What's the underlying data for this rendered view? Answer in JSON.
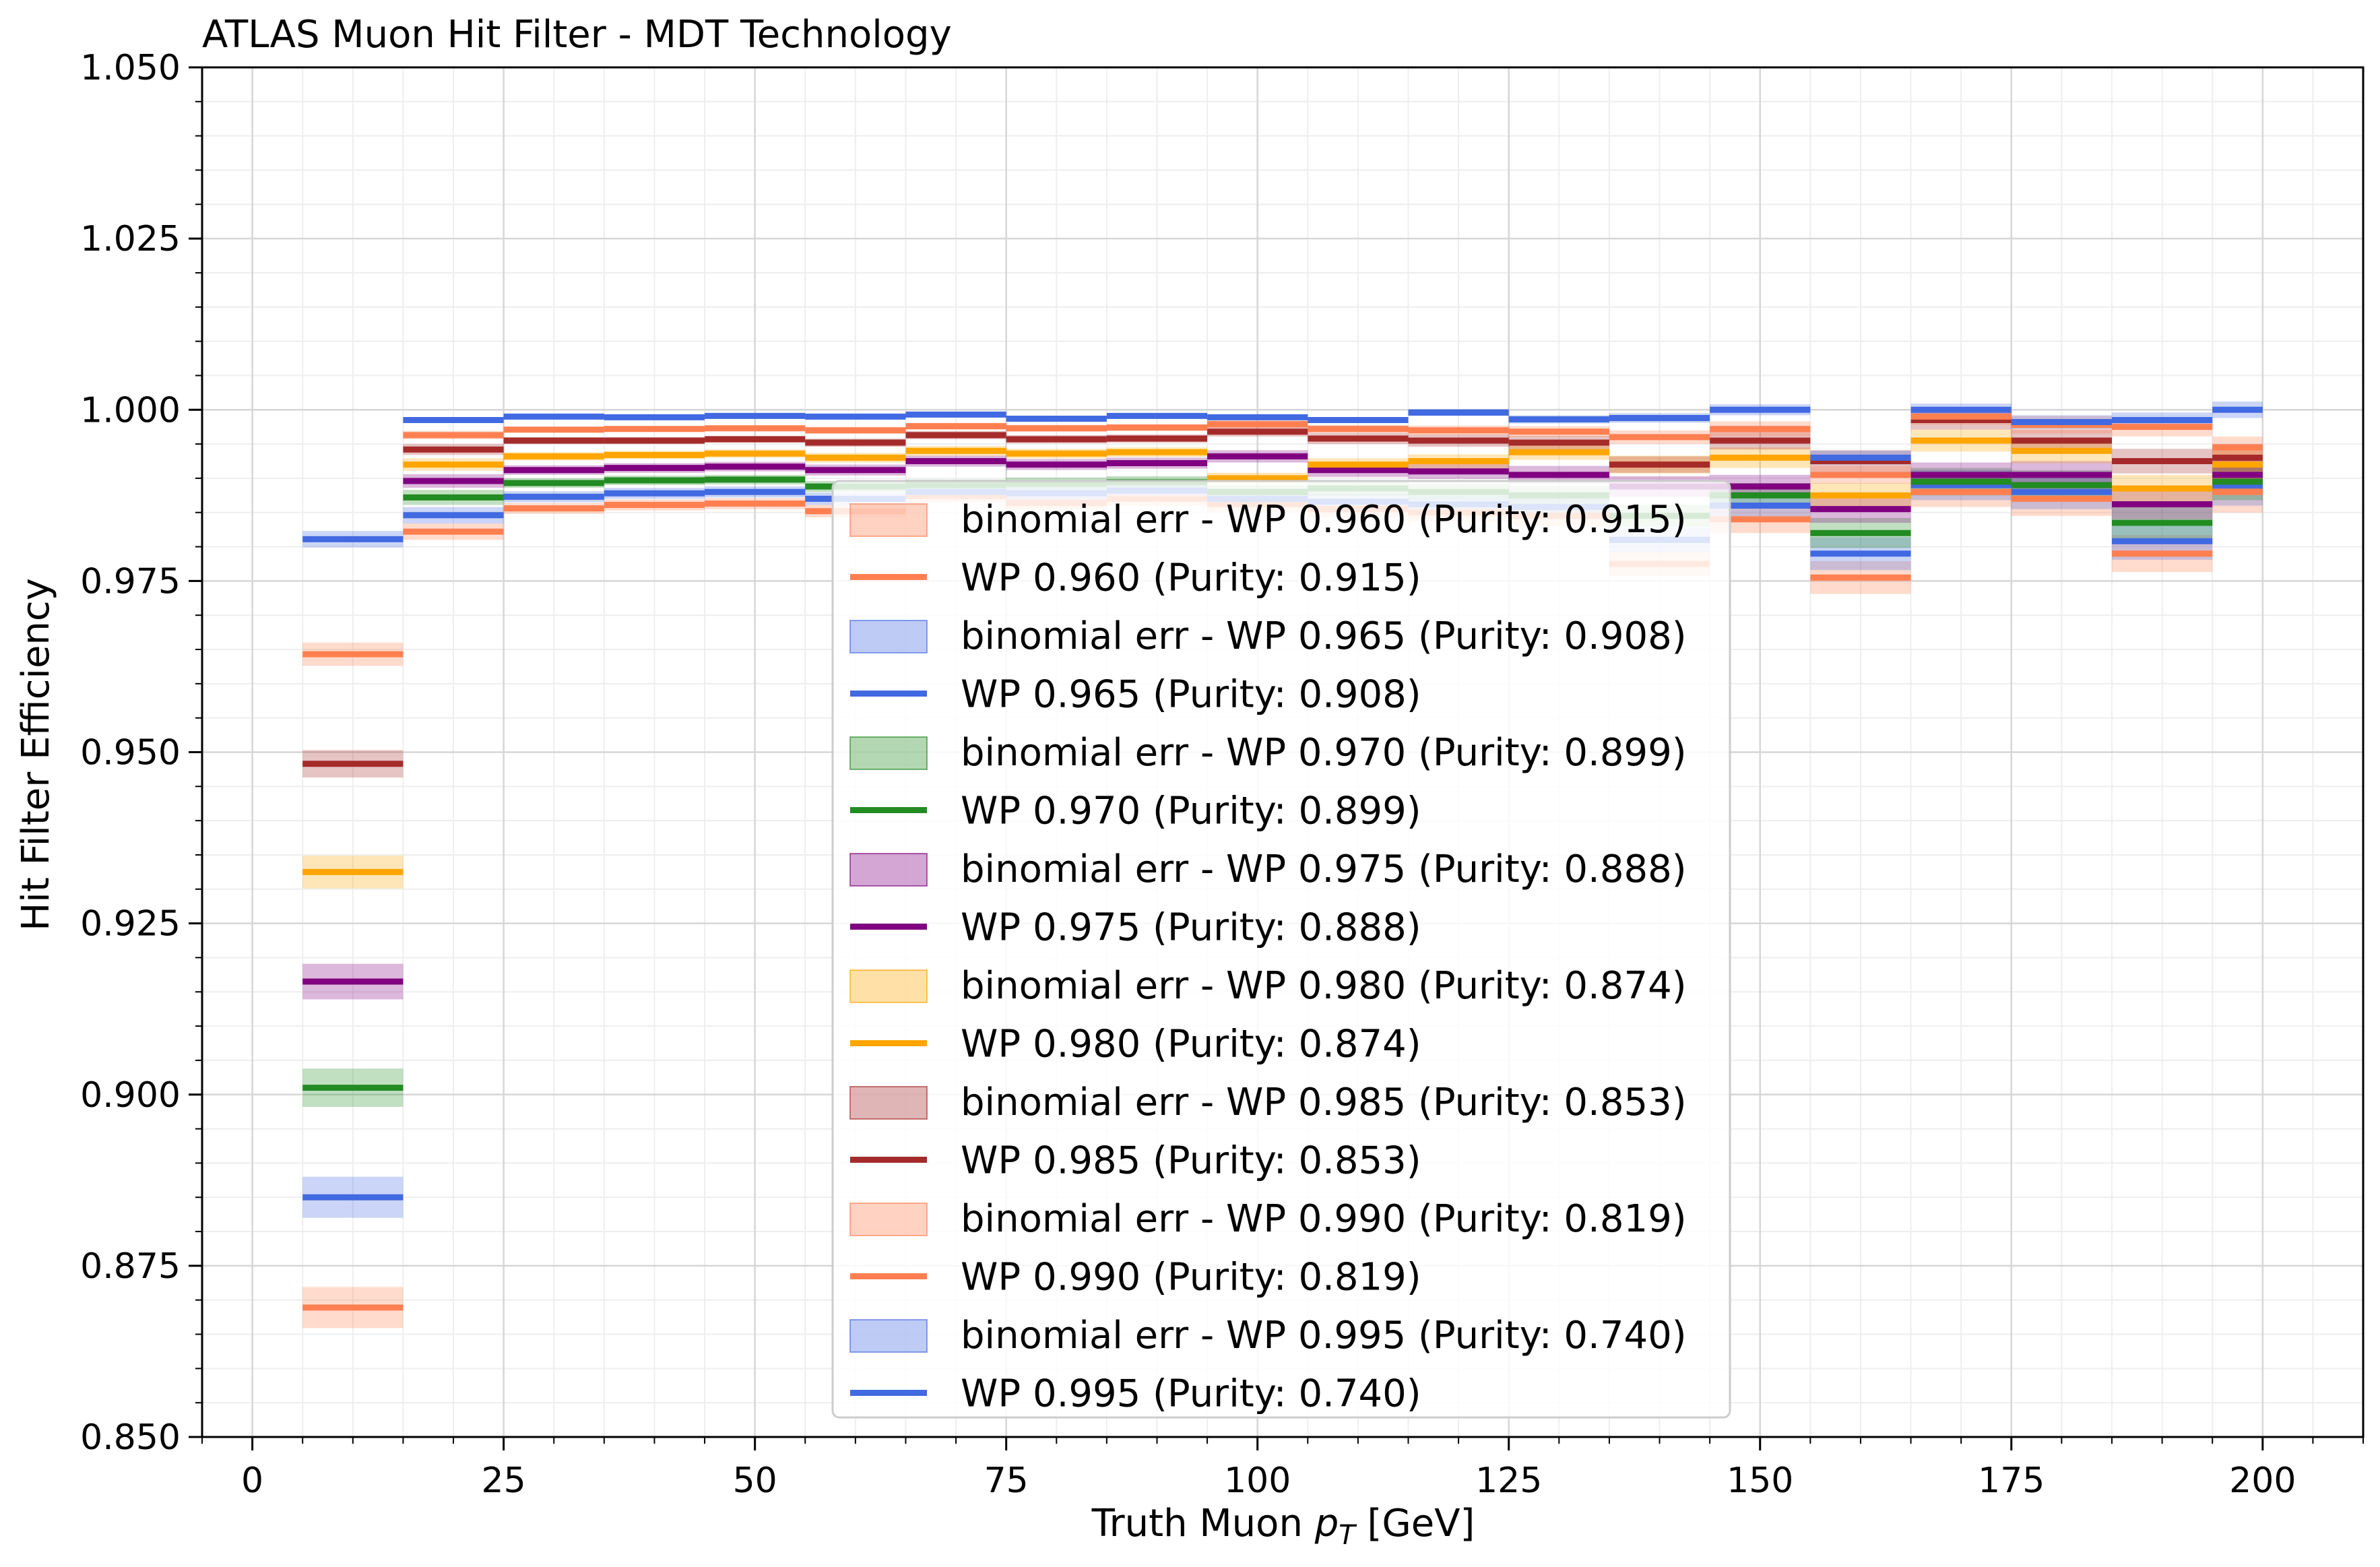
{
  "chart_data": {
    "type": "line",
    "title": "ATLAS Muon Hit Filter - MDT Technology",
    "xlabel_prefix": "Truth Muon ",
    "xlabel_var": "p",
    "xlabel_sub": "T",
    "xlabel_suffix": " [GeV]",
    "ylabel": "Hit Filter Efficiency",
    "xlim": [
      -5,
      210
    ],
    "ylim": [
      0.85,
      1.05
    ],
    "xticks": [
      0,
      25,
      50,
      75,
      100,
      125,
      150,
      175,
      200
    ],
    "xtick_labels": [
      "0",
      "25",
      "50",
      "75",
      "100",
      "125",
      "150",
      "175",
      "200"
    ],
    "yticks": [
      0.85,
      0.875,
      0.9,
      0.925,
      0.95,
      0.975,
      1.0,
      1.025,
      1.05
    ],
    "ytick_labels": [
      "0.850",
      "0.875",
      "0.900",
      "0.925",
      "0.950",
      "0.975",
      "1.000",
      "1.025",
      "1.050"
    ],
    "grid": true,
    "legend_position": "center",
    "bin_edges": [
      5,
      15,
      25,
      35,
      45,
      55,
      65,
      75,
      85,
      95,
      105,
      115,
      125,
      135,
      145,
      155,
      165,
      175,
      185,
      195,
      200
    ],
    "series": [
      {
        "name": "WP 0.960 (Purity: 0.915)",
        "band_label": "binomial err - WP 0.960 (Purity: 0.915)",
        "color": "#ff7f50",
        "values": [
          0.8689,
          0.9822,
          0.9856,
          0.9861,
          0.9863,
          0.9852,
          0.9874,
          0.9864,
          0.987,
          0.9862,
          0.9855,
          0.985,
          0.9845,
          0.9775,
          0.984,
          0.9755,
          0.988,
          0.987,
          0.979,
          0.988
        ],
        "err": [
          0.003,
          0.0012,
          0.0008,
          0.0008,
          0.0008,
          0.0009,
          0.0009,
          0.001,
          0.001,
          0.0011,
          0.0012,
          0.0013,
          0.0015,
          0.0018,
          0.002,
          0.0024,
          0.0022,
          0.0025,
          0.0027,
          0.003
        ]
      },
      {
        "name": "WP 0.965 (Purity: 0.908)",
        "band_label": "binomial err - WP 0.965 (Purity: 0.908)",
        "color": "#4169e1",
        "values": [
          0.885,
          0.9846,
          0.9873,
          0.9878,
          0.988,
          0.987,
          0.988,
          0.9878,
          0.9882,
          0.987,
          0.9866,
          0.9862,
          0.9858,
          0.981,
          0.986,
          0.979,
          0.989,
          0.988,
          0.9808,
          0.989
        ],
        "err": [
          0.003,
          0.0012,
          0.0008,
          0.0008,
          0.0008,
          0.0009,
          0.0009,
          0.001,
          0.001,
          0.0011,
          0.0012,
          0.0013,
          0.0015,
          0.0018,
          0.002,
          0.0024,
          0.0022,
          0.0025,
          0.0027,
          0.003
        ]
      },
      {
        "name": "WP 0.970 (Purity: 0.899)",
        "band_label": "binomial err - WP 0.970 (Purity: 0.899)",
        "color": "#228b22",
        "values": [
          0.901,
          0.9872,
          0.9893,
          0.9897,
          0.9898,
          0.9888,
          0.989,
          0.9892,
          0.9894,
          0.988,
          0.9885,
          0.988,
          0.9875,
          0.9845,
          0.9875,
          0.982,
          0.9895,
          0.989,
          0.9835,
          0.9895
        ],
        "err": [
          0.0028,
          0.0011,
          0.0007,
          0.0007,
          0.0007,
          0.0008,
          0.0008,
          0.0009,
          0.0009,
          0.001,
          0.0011,
          0.0012,
          0.0014,
          0.0016,
          0.0018,
          0.0022,
          0.002,
          0.0022,
          0.0024,
          0.0027
        ]
      },
      {
        "name": "WP 0.975 (Purity: 0.888)",
        "band_label": "binomial err - WP 0.975 (Purity: 0.888)",
        "color": "#800080",
        "values": [
          0.9165,
          0.9896,
          0.9912,
          0.9915,
          0.9917,
          0.9912,
          0.9925,
          0.992,
          0.9922,
          0.9932,
          0.9912,
          0.991,
          0.9905,
          0.9888,
          0.9888,
          0.9855,
          0.9905,
          0.9905,
          0.9862,
          0.9905
        ],
        "err": [
          0.0026,
          0.001,
          0.0007,
          0.0007,
          0.0007,
          0.0008,
          0.0008,
          0.0008,
          0.0008,
          0.0009,
          0.001,
          0.0011,
          0.0013,
          0.0015,
          0.0017,
          0.002,
          0.0018,
          0.002,
          0.0022,
          0.0025
        ]
      },
      {
        "name": "WP 0.980 (Purity: 0.874)",
        "band_label": "binomial err - WP 0.980 (Purity: 0.874)",
        "color": "#ffa500",
        "values": [
          0.9325,
          0.992,
          0.9932,
          0.9934,
          0.9936,
          0.993,
          0.994,
          0.9936,
          0.9938,
          0.99,
          0.992,
          0.9925,
          0.9938,
          0.992,
          0.993,
          0.9875,
          0.9955,
          0.994,
          0.9885,
          0.992
        ],
        "err": [
          0.0024,
          0.0009,
          0.0006,
          0.0006,
          0.0006,
          0.0007,
          0.0007,
          0.0007,
          0.0007,
          0.0008,
          0.0009,
          0.001,
          0.0011,
          0.0013,
          0.0015,
          0.0018,
          0.0016,
          0.0018,
          0.002,
          0.0022
        ]
      },
      {
        "name": "WP 0.985 (Purity: 0.853)",
        "band_label": "binomial err - WP 0.985 (Purity: 0.853)",
        "color": "#a52a2a",
        "values": [
          0.9483,
          0.9942,
          0.9955,
          0.9955,
          0.9957,
          0.9952,
          0.9963,
          0.9957,
          0.9958,
          0.9968,
          0.9958,
          0.9955,
          0.9952,
          0.992,
          0.9955,
          0.9925,
          0.9985,
          0.9955,
          0.9925,
          0.993
        ],
        "err": [
          0.002,
          0.0008,
          0.0005,
          0.0005,
          0.0005,
          0.0006,
          0.0006,
          0.0006,
          0.0006,
          0.0007,
          0.0008,
          0.0009,
          0.001,
          0.0012,
          0.0013,
          0.0016,
          0.0014,
          0.0016,
          0.0018,
          0.002
        ]
      },
      {
        "name": "WP 0.990 (Purity: 0.819)",
        "band_label": "binomial err - WP 0.990 (Purity: 0.819)",
        "color": "#ff7f50",
        "values": [
          0.9643,
          0.9963,
          0.9971,
          0.9972,
          0.9973,
          0.997,
          0.9976,
          0.9973,
          0.9974,
          0.9979,
          0.9972,
          0.997,
          0.9968,
          0.996,
          0.9972,
          0.9905,
          0.999,
          0.9978,
          0.9975,
          0.9945
        ],
        "err": [
          0.0017,
          0.0006,
          0.0004,
          0.0004,
          0.0004,
          0.0005,
          0.0005,
          0.0005,
          0.0005,
          0.0006,
          0.0006,
          0.0007,
          0.0008,
          0.001,
          0.0011,
          0.0013,
          0.0012,
          0.0013,
          0.0014,
          0.0016
        ]
      },
      {
        "name": "WP 0.995 (Purity: 0.740)",
        "band_label": "binomial err - WP 0.995 (Purity: 0.740)",
        "color": "#4169e1",
        "values": [
          0.9811,
          0.9985,
          0.999,
          0.9989,
          0.9991,
          0.999,
          0.9993,
          0.9987,
          0.9991,
          0.9989,
          0.9985,
          0.9996,
          0.9986,
          0.9988,
          1.0,
          0.993,
          1.0,
          0.9982,
          0.9985,
          1.0
        ],
        "err": [
          0.0012,
          0.0004,
          0.0003,
          0.0003,
          0.0003,
          0.0003,
          0.0003,
          0.0003,
          0.0004,
          0.0004,
          0.0004,
          0.0005,
          0.0006,
          0.0007,
          0.0008,
          0.001,
          0.0009,
          0.001,
          0.0011,
          0.0012
        ]
      }
    ]
  }
}
